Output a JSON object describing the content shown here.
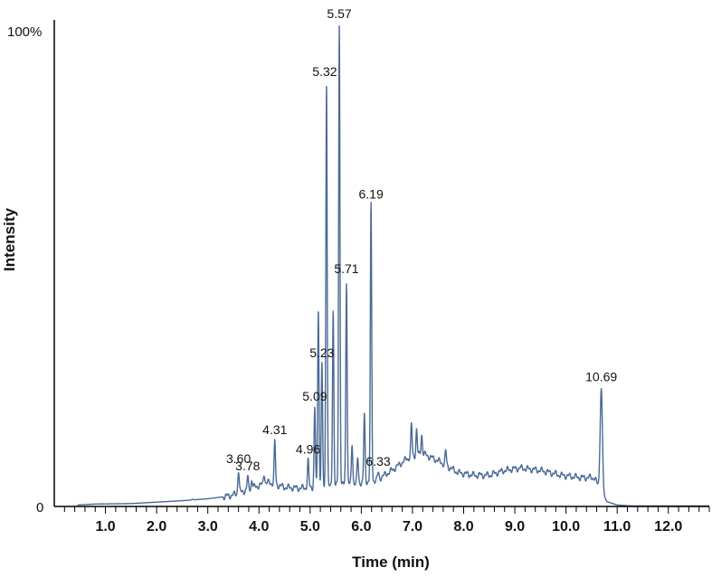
{
  "colors": {
    "trace": "#4a6a96",
    "axis": "#000000"
  },
  "chart_data": {
    "type": "line",
    "xlabel": "Time (min)",
    "ylabel": "Intensity",
    "xlim": [
      0.0,
      12.8
    ],
    "ylim": [
      0,
      100
    ],
    "y_ticks": [
      "0",
      "100%"
    ],
    "x_ticks": [
      {
        "value": 1.0,
        "label": "1.0"
      },
      {
        "value": 2.0,
        "label": "2.0"
      },
      {
        "value": 3.0,
        "label": "3.0"
      },
      {
        "value": 4.0,
        "label": "4.0"
      },
      {
        "value": 5.0,
        "label": "5.0"
      },
      {
        "value": 6.0,
        "label": "6.0"
      },
      {
        "value": 7.0,
        "label": "7.0"
      },
      {
        "value": 8.0,
        "label": "8.0"
      },
      {
        "value": 9.0,
        "label": "9.0"
      },
      {
        "value": 10.0,
        "label": "10.0"
      },
      {
        "value": 11.0,
        "label": "11.0"
      },
      {
        "value": 12.0,
        "label": "12.0"
      }
    ],
    "peaks": [
      {
        "label": "3.60",
        "x": 3.6,
        "y": 7.5
      },
      {
        "label": "3.78",
        "x": 3.78,
        "y": 6.0
      },
      {
        "label": "4.31",
        "x": 4.31,
        "y": 13.5
      },
      {
        "label": "4.96",
        "x": 4.96,
        "y": 9.5
      },
      {
        "label": "5.09",
        "x": 5.09,
        "y": 20.5
      },
      {
        "label": "5.23",
        "x": 5.23,
        "y": 29.5
      },
      {
        "label": "5.32",
        "x": 5.32,
        "y": 88.0
      },
      {
        "label": "5.57",
        "x": 5.57,
        "y": 100.0
      },
      {
        "label": "5.71",
        "x": 5.71,
        "y": 47.0
      },
      {
        "label": "6.19",
        "x": 6.19,
        "y": 62.5
      },
      {
        "label": "6.33",
        "x": 6.33,
        "y": 7.0
      },
      {
        "label": "10.69",
        "x": 10.69,
        "y": 24.5
      }
    ],
    "extra_peaks": [
      {
        "x": 2.7,
        "y": 1.5
      },
      {
        "x": 3.86,
        "y": 5.5
      },
      {
        "x": 4.1,
        "y": 7.0
      },
      {
        "x": 5.16,
        "y": 41.0
      },
      {
        "x": 5.45,
        "y": 41.0
      },
      {
        "x": 5.82,
        "y": 13.0
      },
      {
        "x": 5.93,
        "y": 10.0
      },
      {
        "x": 6.06,
        "y": 19.0
      },
      {
        "x": 6.98,
        "y": 17.0
      },
      {
        "x": 7.08,
        "y": 16.0
      },
      {
        "x": 7.18,
        "y": 15.0
      },
      {
        "x": 7.65,
        "y": 11.5
      }
    ],
    "baseline": [
      [
        0.45,
        0.3
      ],
      [
        0.8,
        0.5
      ],
      [
        1.5,
        0.6
      ],
      [
        2.0,
        0.9
      ],
      [
        2.5,
        1.2
      ],
      [
        3.0,
        1.6
      ],
      [
        3.3,
        2.0
      ],
      [
        3.5,
        2.4
      ],
      [
        3.9,
        4.0
      ],
      [
        4.2,
        5.0
      ],
      [
        4.5,
        4.0
      ],
      [
        4.8,
        3.8
      ],
      [
        5.0,
        4.0
      ],
      [
        5.3,
        4.0
      ],
      [
        5.6,
        4.5
      ],
      [
        6.0,
        5.0
      ],
      [
        6.3,
        5.5
      ],
      [
        6.6,
        7.5
      ],
      [
        6.9,
        10.0
      ],
      [
        7.2,
        11.0
      ],
      [
        7.5,
        9.5
      ],
      [
        7.9,
        7.0
      ],
      [
        8.2,
        6.5
      ],
      [
        8.5,
        6.5
      ],
      [
        8.8,
        7.5
      ],
      [
        9.1,
        8.0
      ],
      [
        9.5,
        7.5
      ],
      [
        9.9,
        6.5
      ],
      [
        10.3,
        6.0
      ],
      [
        10.55,
        6.0
      ],
      [
        10.8,
        1.0
      ],
      [
        11.0,
        0.3
      ],
      [
        11.3,
        0.1
      ],
      [
        12.8,
        0.1
      ]
    ]
  }
}
